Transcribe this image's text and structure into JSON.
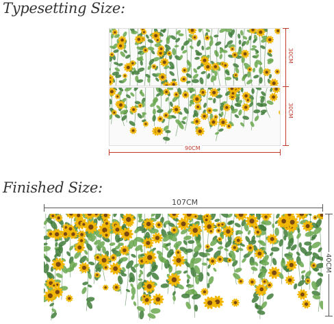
{
  "headings": {
    "typesetting": "Typesetting Size:",
    "finished": "Finished Size:"
  },
  "typesetting": {
    "width_label": "90CM",
    "top_height_label": "30CM",
    "bottom_height_label": "30CM"
  },
  "finished": {
    "width_label": "107CM",
    "height_label": "40CM"
  },
  "colors": {
    "petal": "#f2b705",
    "center": "#7a4a12",
    "leaf": "#6aa84f",
    "leaf_dark": "#3f7d3a",
    "dimension_red": "#c0392b"
  }
}
